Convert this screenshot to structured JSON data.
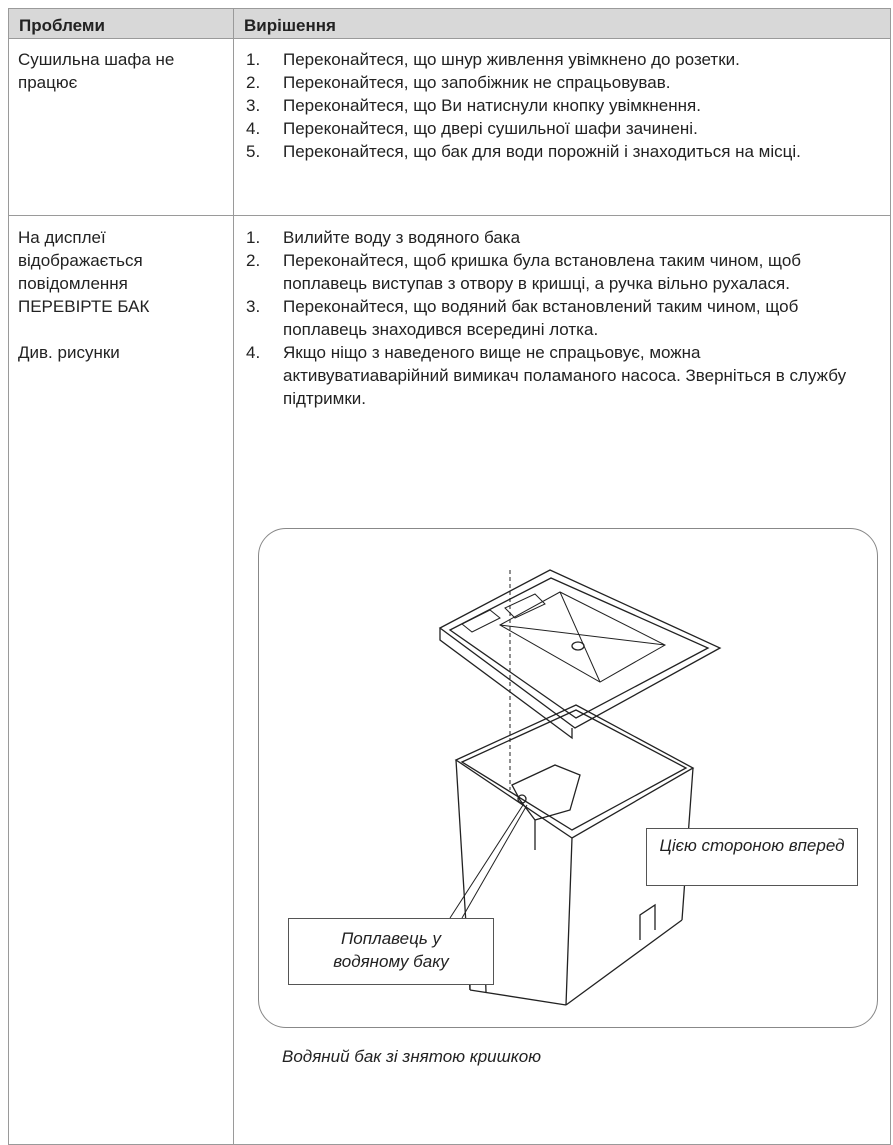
{
  "table": {
    "headers": [
      "Проблеми",
      "Вирішення"
    ],
    "rows": [
      {
        "problem": [
          "Сушильна шафа не працює"
        ],
        "solutions": [
          {
            "num": "1.",
            "text": "Переконайтеся, що шнур живлення увімкнено до розетки."
          },
          {
            "num": "2.",
            "text": "Переконайтеся, що запобіжник не спрацьовував."
          },
          {
            "num": "3.",
            "text": "Переконайтеся, що Ви натиснули кнопку увімкнення."
          },
          {
            "num": "4.",
            "text": "Переконайтеся, що двері сушильної шафи зачинені."
          },
          {
            "num": "5.",
            "text": "Переконайтеся, що бак для води порожній і знаходиться на місці."
          }
        ]
      },
      {
        "problem": [
          "На дисплеї відображається повідомлення ПЕРЕВІРТЕ БАК",
          "Див. рисунки"
        ],
        "solutions": [
          {
            "num": "1.",
            "text": "Вилийте воду з водяного бака"
          },
          {
            "num": "2.",
            "text": "Переконайтеся, щоб кришка була встановлена таким чином, щоб поплавець виступав з отвору в кришці, а ручка вільно рухалася."
          },
          {
            "num": "3.",
            "text": "Переконайтеся, що водяний бак встановлений таким чином, щоб поплавець знаходився всередині лотка."
          },
          {
            "num": "4.",
            "text": "Якщо ніщо з наведеного вище не спрацьовує, можна активуватиаварійний вимикач поламаного насоса. Зверніться в службу підтримки."
          }
        ]
      }
    ]
  },
  "figure": {
    "callouts": [
      "Цією стороною вперед",
      "Поплавець у водяному баку"
    ],
    "caption": "Водяний бак зі знятою кришкою"
  }
}
